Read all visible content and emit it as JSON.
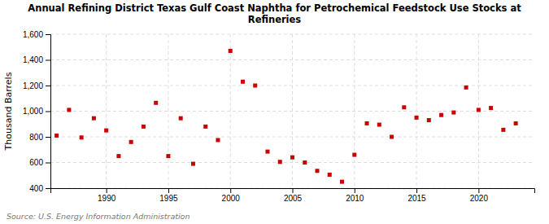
{
  "chart_data": {
    "type": "scatter",
    "title": "Annual Refining District Texas Gulf Coast Naphtha for Petrochemical Feedstock Use Stocks at\nRefineries",
    "y_label": "Thousand Barrels",
    "source": "Source: U.S. Energy Information Administration",
    "x": [
      1986,
      1987,
      1988,
      1989,
      1990,
      1991,
      1992,
      1993,
      1994,
      1995,
      1996,
      1997,
      1998,
      1999,
      2000,
      2001,
      2002,
      2003,
      2004,
      2005,
      2006,
      2007,
      2008,
      2009,
      2010,
      2011,
      2012,
      2013,
      2014,
      2015,
      2016,
      2017,
      2018,
      2019,
      2020,
      2021,
      2022,
      2023
    ],
    "values": [
      810,
      1010,
      795,
      945,
      850,
      650,
      760,
      880,
      1065,
      650,
      945,
      590,
      880,
      775,
      1470,
      1230,
      1200,
      685,
      605,
      640,
      600,
      535,
      505,
      450,
      660,
      905,
      895,
      800,
      1030,
      950,
      930,
      970,
      990,
      1185,
      1010,
      1025,
      855,
      905
    ],
    "color": "#cc0000",
    "marker": "square",
    "xlim": [
      1985.5,
      2024.5
    ],
    "xticks": [
      1990,
      1995,
      2000,
      2005,
      2010,
      2015,
      2020
    ],
    "ylim": [
      400,
      1600
    ],
    "yticks": [
      400,
      600,
      800,
      {
        "value": 1000,
        "label": "1,000"
      },
      {
        "value": 1200,
        "label": "1,200"
      },
      {
        "value": 1400,
        "label": "1,400"
      },
      {
        "value": 1600,
        "label": "1,600"
      }
    ],
    "grid": true
  }
}
